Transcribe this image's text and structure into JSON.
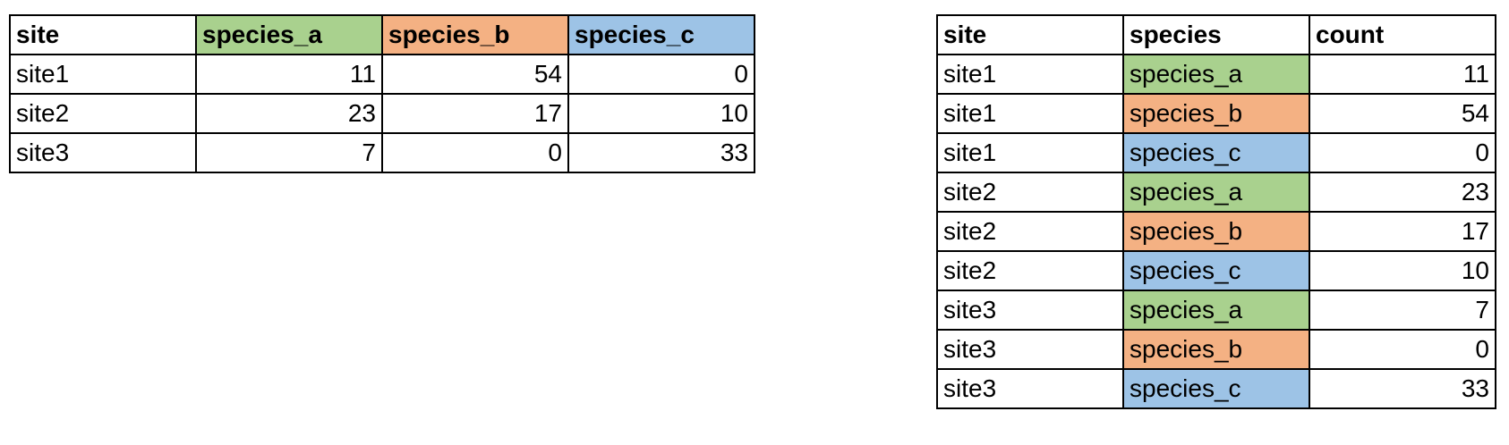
{
  "wide_table": {
    "headers": [
      {
        "label": "site",
        "color": ""
      },
      {
        "label": "species_a",
        "color": "#a9d18e"
      },
      {
        "label": "species_b",
        "color": "#f4b183"
      },
      {
        "label": "species_c",
        "color": "#9dc3e6"
      }
    ],
    "rows": [
      {
        "site": "site1",
        "values": [
          "11",
          "54",
          "0"
        ]
      },
      {
        "site": "site2",
        "values": [
          "23",
          "17",
          "10"
        ]
      },
      {
        "site": "site3",
        "values": [
          "7",
          "0",
          "33"
        ]
      }
    ]
  },
  "long_table": {
    "headers": [
      "site",
      "species",
      "count"
    ],
    "rows": [
      {
        "site": "site1",
        "species": "species_a",
        "count": "11"
      },
      {
        "site": "site1",
        "species": "species_b",
        "count": "54"
      },
      {
        "site": "site1",
        "species": "species_c",
        "count": "0"
      },
      {
        "site": "site2",
        "species": "species_a",
        "count": "23"
      },
      {
        "site": "site2",
        "species": "species_b",
        "count": "17"
      },
      {
        "site": "site2",
        "species": "species_c",
        "count": "10"
      },
      {
        "site": "site3",
        "species": "species_a",
        "count": "7"
      },
      {
        "site": "site3",
        "species": "species_b",
        "count": "0"
      },
      {
        "site": "site3",
        "species": "species_c",
        "count": "33"
      }
    ]
  },
  "species_colors": {
    "species_a": "#a9d18e",
    "species_b": "#f4b183",
    "species_c": "#9dc3e6"
  }
}
